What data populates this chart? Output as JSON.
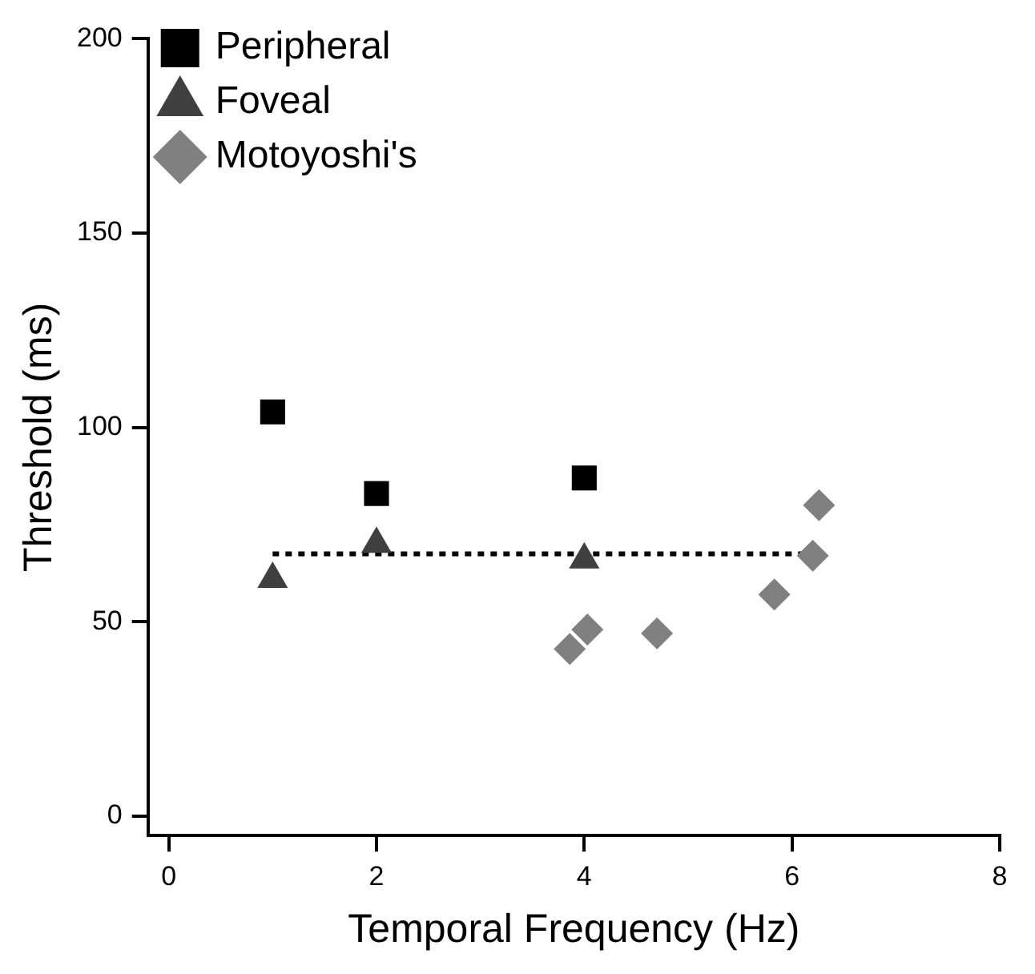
{
  "chart_data": {
    "type": "scatter",
    "xlabel": "Temporal Frequency (Hz)",
    "ylabel": "Threshold (ms)",
    "xlim": [
      -0.2,
      8
    ],
    "xticks": [
      0,
      2,
      4,
      6,
      8
    ],
    "ylim": [
      -5,
      200
    ],
    "yticks": [
      0,
      50,
      100,
      150,
      200
    ],
    "grid": false,
    "legend": "top left",
    "series": [
      {
        "name": "Peripheral",
        "color": "#000000",
        "marker": "square",
        "x": [
          1,
          2,
          4
        ],
        "values": [
          104,
          83,
          87
        ]
      },
      {
        "name": "Foveal",
        "color": "#404040",
        "marker": "triangle",
        "x": [
          1,
          2,
          4
        ],
        "values": [
          61,
          70,
          66
        ]
      },
      {
        "name": "Motoyoshi's",
        "color": "#808080",
        "marker": "diamond",
        "x": [
          3.86,
          4.03,
          4.7,
          5.83,
          6.2,
          6.26
        ],
        "values": [
          43,
          48,
          47,
          57,
          67,
          80
        ]
      },
      {
        "type": "line",
        "color": "#000000",
        "marker": "none",
        "line_style": "dotted",
        "x": [
          1,
          6.2
        ],
        "values": [
          67.5,
          67.5
        ]
      }
    ]
  }
}
